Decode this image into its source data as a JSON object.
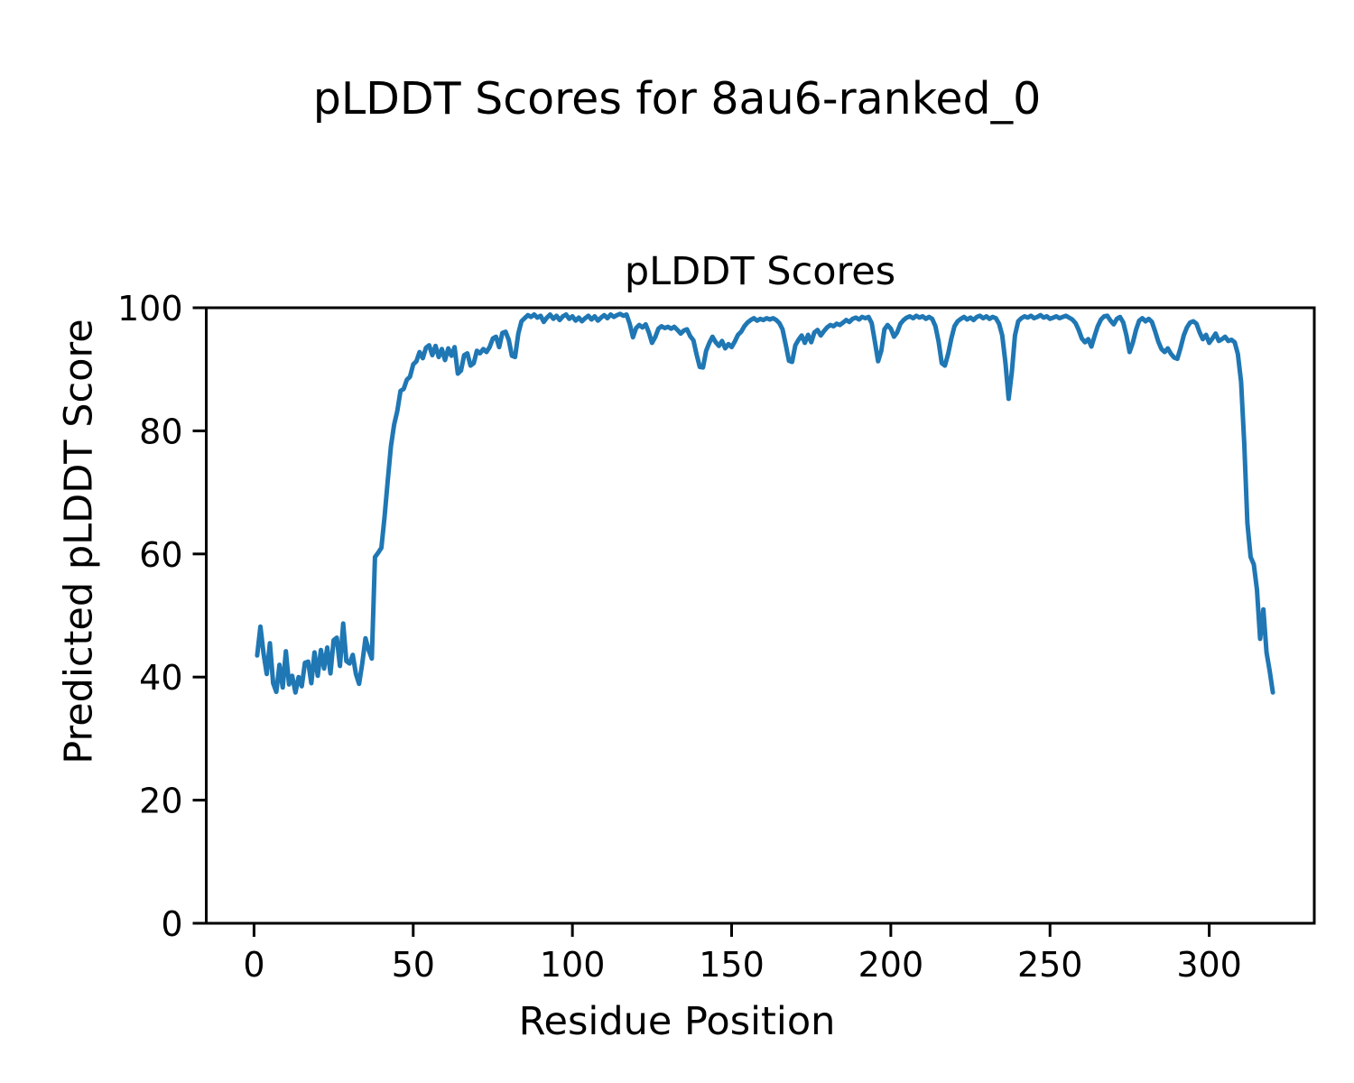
{
  "figure": {
    "suptitle": "pLDDT Scores for 8au6-ranked_0"
  },
  "chart_data": {
    "type": "line",
    "title": "pLDDT Scores",
    "xlabel": "Residue Position",
    "ylabel": "Predicted pLDDT Score",
    "xlim": [
      -15,
      333
    ],
    "ylim": [
      0,
      100
    ],
    "xticks": [
      0,
      50,
      100,
      150,
      200,
      250,
      300
    ],
    "yticks": [
      0,
      20,
      40,
      60,
      80,
      100
    ],
    "grid": false,
    "legend": "none",
    "line_color": "#1f77b4",
    "line_width": 5,
    "x_start": 1,
    "x_step": 1,
    "values": [
      43.5,
      48.2,
      43.8,
      40.5,
      45.5,
      39.0,
      37.6,
      42.0,
      38.3,
      44.2,
      38.8,
      40.2,
      37.5,
      40.0,
      38.5,
      42.3,
      42.5,
      39.0,
      44.0,
      40.2,
      44.4,
      41.4,
      44.8,
      40.6,
      46.0,
      46.4,
      41.8,
      48.7,
      42.6,
      42.2,
      43.6,
      40.5,
      38.9,
      42.2,
      46.3,
      44.4,
      43.0,
      59.5,
      60.2,
      61.0,
      66.0,
      72.0,
      77.5,
      81.0,
      83.2,
      86.5,
      86.8,
      88.3,
      88.8,
      90.8,
      91.3,
      92.8,
      91.8,
      93.5,
      93.9,
      92.3,
      93.8,
      92.0,
      93.3,
      91.5,
      93.4,
      92.2,
      93.6,
      89.3,
      89.8,
      92.3,
      92.6,
      90.6,
      91.0,
      93.0,
      92.6,
      93.3,
      92.8,
      93.6,
      95.0,
      95.3,
      93.6,
      95.9,
      96.1,
      94.8,
      92.2,
      92.0,
      95.8,
      97.8,
      98.3,
      98.8,
      98.5,
      98.9,
      98.4,
      98.7,
      97.7,
      98.4,
      98.9,
      98.2,
      98.7,
      98.0,
      98.6,
      98.9,
      98.2,
      98.6,
      97.9,
      98.4,
      97.8,
      98.3,
      98.7,
      98.1,
      98.6,
      97.9,
      98.4,
      98.8,
      98.3,
      98.9,
      98.5,
      98.8,
      99.0,
      98.7,
      98.9,
      97.4,
      95.2,
      96.7,
      97.2,
      96.8,
      97.3,
      96.0,
      94.3,
      95.2,
      96.6,
      97.0,
      96.7,
      96.9,
      96.6,
      96.9,
      96.4,
      95.8,
      96.3,
      96.5,
      95.4,
      94.7,
      92.4,
      90.4,
      90.3,
      93.0,
      94.3,
      95.3,
      94.4,
      93.8,
      94.6,
      93.4,
      94.1,
      93.6,
      94.5,
      95.6,
      96.1,
      97.0,
      97.6,
      98.0,
      98.3,
      97.9,
      98.2,
      98.0,
      98.3,
      98.1,
      98.3,
      98.0,
      97.5,
      96.5,
      94.0,
      91.4,
      91.2,
      93.9,
      94.8,
      95.5,
      94.3,
      95.6,
      94.4,
      96.0,
      96.4,
      95.5,
      96.2,
      96.8,
      97.2,
      97.0,
      97.4,
      97.2,
      97.6,
      98.0,
      97.7,
      98.2,
      98.4,
      98.1,
      98.5,
      98.3,
      98.5,
      97.5,
      94.5,
      91.3,
      93.0,
      96.5,
      97.2,
      96.6,
      95.3,
      96.0,
      97.4,
      98.0,
      98.4,
      98.6,
      98.3,
      98.7,
      98.4,
      98.6,
      98.2,
      98.5,
      98.2,
      97.0,
      94.5,
      91.0,
      90.6,
      92.5,
      95.0,
      97.0,
      97.8,
      98.2,
      98.5,
      98.1,
      98.4,
      98.0,
      98.5,
      98.7,
      98.3,
      98.6,
      98.2,
      98.5,
      98.3,
      97.4,
      95.5,
      91.0,
      85.2,
      89.5,
      95.5,
      97.8,
      98.3,
      98.6,
      98.4,
      98.7,
      98.3,
      98.5,
      98.8,
      98.4,
      98.6,
      98.2,
      98.4,
      98.6,
      98.3,
      98.5,
      98.7,
      98.4,
      98.1,
      97.5,
      96.4,
      95.0,
      94.4,
      94.9,
      93.7,
      95.4,
      97.0,
      98.1,
      98.6,
      98.7,
      97.9,
      97.3,
      98.2,
      98.5,
      97.6,
      95.5,
      92.8,
      94.3,
      96.4,
      97.9,
      98.3,
      97.8,
      98.2,
      97.7,
      96.2,
      94.5,
      93.3,
      92.8,
      93.4,
      92.5,
      91.9,
      91.7,
      93.5,
      95.5,
      96.8,
      97.6,
      97.8,
      97.4,
      96.0,
      94.9,
      95.6,
      94.3,
      95.0,
      95.8,
      94.6,
      94.9,
      95.3,
      94.6,
      94.8,
      94.4,
      92.5,
      88.0,
      78.0,
      65.0,
      59.5,
      58.3,
      54.2,
      46.2,
      51.0,
      44.0,
      41.0,
      37.5
    ]
  }
}
